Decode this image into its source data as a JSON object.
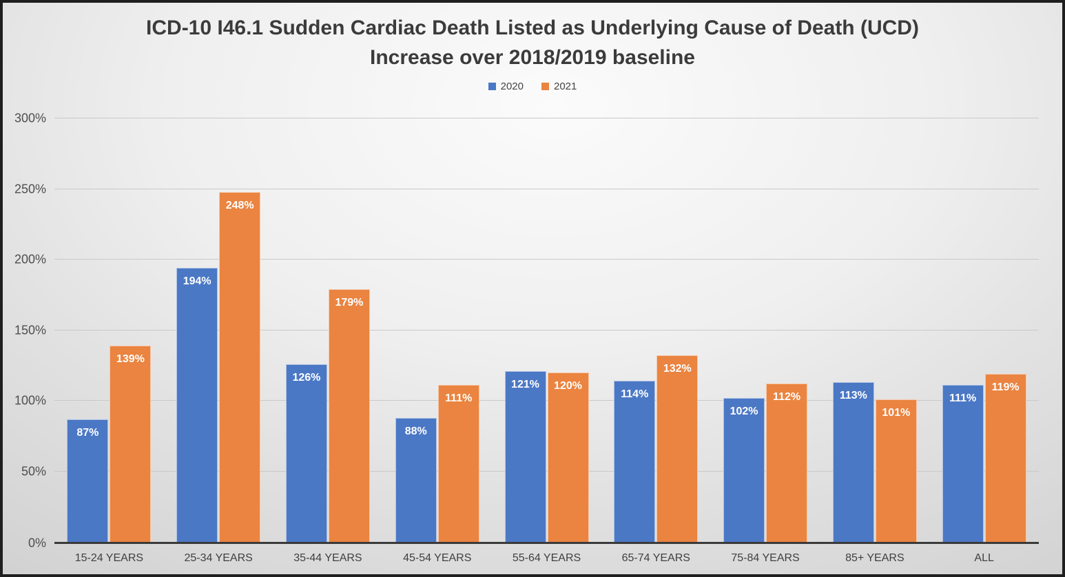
{
  "title": {
    "line1": "ICD-10 I46.1 Sudden Cardiac Death Listed as Underlying Cause of Death (UCD)",
    "line2": "Increase over 2018/2019 baseline"
  },
  "legend": {
    "items": [
      {
        "label": "2020",
        "color": "#4B78C5"
      },
      {
        "label": "2021",
        "color": "#EA8440"
      }
    ]
  },
  "chart_data": {
    "type": "bar",
    "title": "ICD-10 I46.1 Sudden Cardiac Death Listed as Underlying Cause of Death (UCD) Increase over 2018/2019 baseline",
    "categories": [
      "15-24 YEARS",
      "25-34 YEARS",
      "35-44 YEARS",
      "45-54 YEARS",
      "55-64 YEARS",
      "65-74 YEARS",
      "75-84 YEARS",
      "85+ YEARS",
      "ALL"
    ],
    "series": [
      {
        "name": "2020",
        "color": "#4B78C5",
        "values": [
          87,
          194,
          126,
          88,
          121,
          114,
          102,
          113,
          111
        ]
      },
      {
        "name": "2021",
        "color": "#EA8440",
        "values": [
          139,
          248,
          179,
          111,
          120,
          132,
          112,
          101,
          119
        ]
      }
    ],
    "value_suffix": "%",
    "ylim": [
      0,
      300
    ],
    "yticks": [
      {
        "value": 0,
        "label": "0%"
      },
      {
        "value": 50,
        "label": "50%"
      },
      {
        "value": 100,
        "label": "100%"
      },
      {
        "value": 150,
        "label": "150%"
      },
      {
        "value": 200,
        "label": "200%"
      },
      {
        "value": 250,
        "label": "250%"
      },
      {
        "value": 300,
        "label": "300%"
      }
    ],
    "grid": true,
    "legend_position": "top-center",
    "data_labels": "inside-top"
  }
}
